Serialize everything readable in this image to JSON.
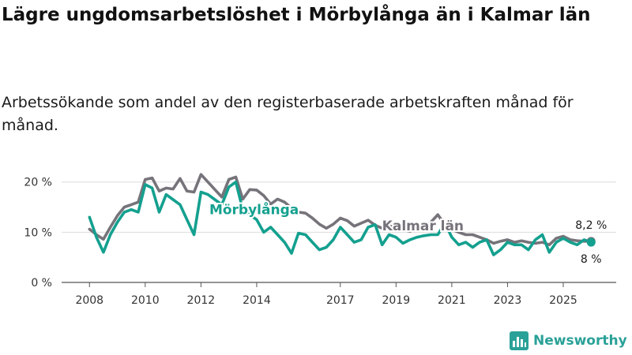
{
  "header": {
    "title": "Lägre ungdomsarbetslöshet i Mörbylånga än i Kalmar län",
    "subtitle": "Arbetssökande som andel av den registerbaserade arbetskraften månad för månad."
  },
  "branding": {
    "name": "Newsworthy",
    "icon": "bar-chart-icon",
    "color": "#2aa198"
  },
  "chart_data": {
    "type": "line",
    "title": "",
    "xlabel": "",
    "ylabel": "",
    "ylim": [
      0,
      22
    ],
    "y_ticks": [
      {
        "value": 0,
        "label": "0 %"
      },
      {
        "value": 10,
        "label": "10 %"
      },
      {
        "value": 20,
        "label": "20 %"
      }
    ],
    "x_ticks": [
      {
        "value": 2008,
        "label": "2008"
      },
      {
        "value": 2010,
        "label": "2010"
      },
      {
        "value": 2012,
        "label": "2012"
      },
      {
        "value": 2014,
        "label": "2014"
      },
      {
        "value": 2017,
        "label": "2017"
      },
      {
        "value": 2019,
        "label": "2019"
      },
      {
        "value": 2021,
        "label": "2021"
      },
      {
        "value": 2023,
        "label": "2023"
      },
      {
        "value": 2025,
        "label": "2025"
      }
    ],
    "xlim": [
      2007.0,
      2026.9
    ],
    "grid": "horizontal",
    "series": [
      {
        "name": "Kalmar län",
        "color": "#76737a",
        "end_label": "8,2 %",
        "points": [
          [
            2008.0,
            10.6
          ],
          [
            2008.25,
            9.5
          ],
          [
            2008.5,
            8.6
          ],
          [
            2008.75,
            11.0
          ],
          [
            2009.0,
            13.3
          ],
          [
            2009.25,
            15.0
          ],
          [
            2009.5,
            15.5
          ],
          [
            2009.75,
            16.0
          ],
          [
            2010.0,
            20.5
          ],
          [
            2010.25,
            20.8
          ],
          [
            2010.5,
            18.2
          ],
          [
            2010.75,
            18.8
          ],
          [
            2011.0,
            18.6
          ],
          [
            2011.25,
            20.7
          ],
          [
            2011.5,
            18.2
          ],
          [
            2011.75,
            18.0
          ],
          [
            2012.0,
            21.5
          ],
          [
            2012.25,
            20.0
          ],
          [
            2012.5,
            18.5
          ],
          [
            2012.75,
            17.0
          ],
          [
            2013.0,
            20.5
          ],
          [
            2013.25,
            21.0
          ],
          [
            2013.5,
            16.6
          ],
          [
            2013.75,
            18.5
          ],
          [
            2014.0,
            18.4
          ],
          [
            2014.25,
            17.3
          ],
          [
            2014.5,
            15.6
          ],
          [
            2014.75,
            16.6
          ],
          [
            2015.0,
            16.0
          ],
          [
            2015.25,
            14.8
          ],
          [
            2015.5,
            14.0
          ],
          [
            2015.75,
            13.8
          ],
          [
            2016.0,
            12.8
          ],
          [
            2016.25,
            11.6
          ],
          [
            2016.5,
            10.8
          ],
          [
            2016.75,
            11.6
          ],
          [
            2017.0,
            12.8
          ],
          [
            2017.25,
            12.3
          ],
          [
            2017.5,
            11.2
          ],
          [
            2017.75,
            11.8
          ],
          [
            2018.0,
            12.4
          ],
          [
            2018.25,
            11.4
          ],
          [
            2018.5,
            10.8
          ],
          [
            2018.75,
            11.2
          ],
          [
            2019.0,
            11.0
          ],
          [
            2019.25,
            10.5
          ],
          [
            2019.5,
            10.2
          ],
          [
            2019.75,
            10.8
          ],
          [
            2020.0,
            10.8
          ],
          [
            2020.25,
            12.0
          ],
          [
            2020.5,
            13.5
          ],
          [
            2020.75,
            11.5
          ],
          [
            2021.0,
            10.5
          ],
          [
            2021.25,
            10.0
          ],
          [
            2021.5,
            9.5
          ],
          [
            2021.75,
            9.5
          ],
          [
            2022.0,
            9.0
          ],
          [
            2022.25,
            8.5
          ],
          [
            2022.5,
            7.8
          ],
          [
            2022.75,
            8.2
          ],
          [
            2023.0,
            8.5
          ],
          [
            2023.25,
            8.0
          ],
          [
            2023.5,
            8.3
          ],
          [
            2023.75,
            8.0
          ],
          [
            2024.0,
            7.8
          ],
          [
            2024.25,
            8.0
          ],
          [
            2024.5,
            7.5
          ],
          [
            2024.75,
            8.8
          ],
          [
            2025.0,
            9.2
          ],
          [
            2025.25,
            8.5
          ],
          [
            2025.5,
            8.3
          ],
          [
            2025.75,
            8.2
          ],
          [
            2026.0,
            8.2
          ]
        ]
      },
      {
        "name": "Mörbylånga",
        "color": "#14a08f",
        "end_label": "8 %",
        "points": [
          [
            2008.0,
            13.0
          ],
          [
            2008.25,
            9.0
          ],
          [
            2008.5,
            6.0
          ],
          [
            2008.75,
            9.5
          ],
          [
            2009.0,
            12.0
          ],
          [
            2009.25,
            14.0
          ],
          [
            2009.5,
            14.5
          ],
          [
            2009.75,
            14.0
          ],
          [
            2010.0,
            19.5
          ],
          [
            2010.25,
            18.8
          ],
          [
            2010.5,
            14.0
          ],
          [
            2010.75,
            17.5
          ],
          [
            2011.0,
            16.5
          ],
          [
            2011.25,
            15.5
          ],
          [
            2011.5,
            12.5
          ],
          [
            2011.75,
            9.5
          ],
          [
            2012.0,
            18.0
          ],
          [
            2012.25,
            17.5
          ],
          [
            2012.5,
            16.5
          ],
          [
            2012.75,
            15.5
          ],
          [
            2013.0,
            19.0
          ],
          [
            2013.25,
            20.0
          ],
          [
            2013.5,
            14.5
          ],
          [
            2013.75,
            13.5
          ],
          [
            2014.0,
            12.5
          ],
          [
            2014.25,
            10.0
          ],
          [
            2014.5,
            11.0
          ],
          [
            2014.75,
            9.5
          ],
          [
            2015.0,
            8.0
          ],
          [
            2015.25,
            5.8
          ],
          [
            2015.5,
            9.8
          ],
          [
            2015.75,
            9.5
          ],
          [
            2016.0,
            8.0
          ],
          [
            2016.25,
            6.5
          ],
          [
            2016.5,
            7.0
          ],
          [
            2016.75,
            8.5
          ],
          [
            2017.0,
            11.0
          ],
          [
            2017.25,
            9.5
          ],
          [
            2017.5,
            8.0
          ],
          [
            2017.75,
            8.5
          ],
          [
            2018.0,
            11.0
          ],
          [
            2018.25,
            11.5
          ],
          [
            2018.5,
            7.5
          ],
          [
            2018.75,
            9.5
          ],
          [
            2019.0,
            9.0
          ],
          [
            2019.25,
            7.8
          ],
          [
            2019.5,
            8.5
          ],
          [
            2019.75,
            9.0
          ],
          [
            2020.0,
            9.3
          ],
          [
            2020.25,
            9.5
          ],
          [
            2020.5,
            9.5
          ],
          [
            2020.75,
            11.8
          ],
          [
            2021.0,
            9.0
          ],
          [
            2021.25,
            7.5
          ],
          [
            2021.5,
            8.0
          ],
          [
            2021.75,
            7.0
          ],
          [
            2022.0,
            8.0
          ],
          [
            2022.25,
            8.5
          ],
          [
            2022.5,
            5.5
          ],
          [
            2022.75,
            6.5
          ],
          [
            2023.0,
            8.0
          ],
          [
            2023.25,
            7.5
          ],
          [
            2023.5,
            7.5
          ],
          [
            2023.75,
            6.5
          ],
          [
            2024.0,
            8.5
          ],
          [
            2024.25,
            9.5
          ],
          [
            2024.5,
            6.0
          ],
          [
            2024.75,
            8.0
          ],
          [
            2025.0,
            8.8
          ],
          [
            2025.25,
            8.0
          ],
          [
            2025.5,
            7.5
          ],
          [
            2025.75,
            8.5
          ],
          [
            2026.0,
            8.0
          ]
        ]
      }
    ]
  }
}
